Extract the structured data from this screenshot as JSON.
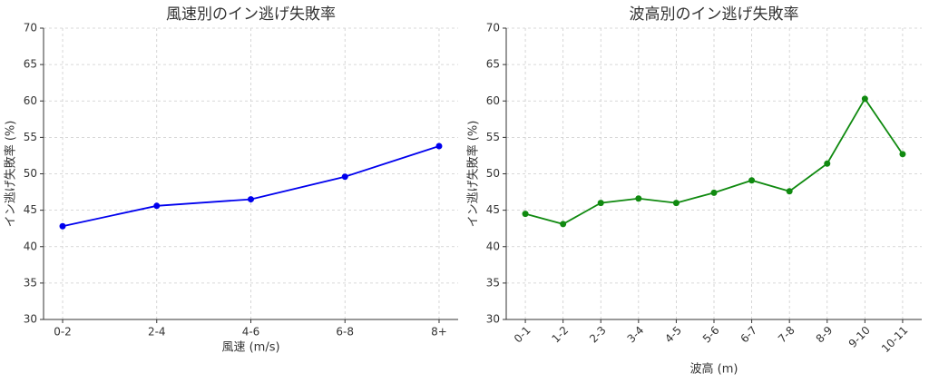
{
  "chart_data": [
    {
      "type": "line",
      "title": "風速別のイン逃げ失敗率",
      "xlabel": "風速 (m/s)",
      "ylabel": "イン逃げ失敗率 (%)",
      "categories": [
        "0-2",
        "2-4",
        "4-6",
        "6-8",
        "8+"
      ],
      "values": [
        42.8,
        45.6,
        46.5,
        49.6,
        53.8
      ],
      "color": "#0000ee",
      "ylim": [
        30,
        70
      ],
      "yticks": [
        30,
        35,
        40,
        45,
        50,
        55,
        60,
        65,
        70
      ],
      "grid": true,
      "x_tick_rotation": 0
    },
    {
      "type": "line",
      "title": "波高別のイン逃げ失敗率",
      "xlabel": "波高 (m)",
      "ylabel": "イン逃げ失敗率 (%)",
      "categories": [
        "0-1",
        "1-2",
        "2-3",
        "3-4",
        "4-5",
        "5-6",
        "6-7",
        "7-8",
        "8-9",
        "9-10",
        "10-11"
      ],
      "values": [
        44.5,
        43.1,
        46.0,
        46.6,
        46.0,
        47.4,
        49.1,
        47.6,
        51.4,
        60.3,
        52.7
      ],
      "color": "#108a10",
      "ylim": [
        30,
        70
      ],
      "yticks": [
        30,
        35,
        40,
        45,
        50,
        55,
        60,
        65,
        70
      ],
      "grid": true,
      "x_tick_rotation": 45
    }
  ]
}
